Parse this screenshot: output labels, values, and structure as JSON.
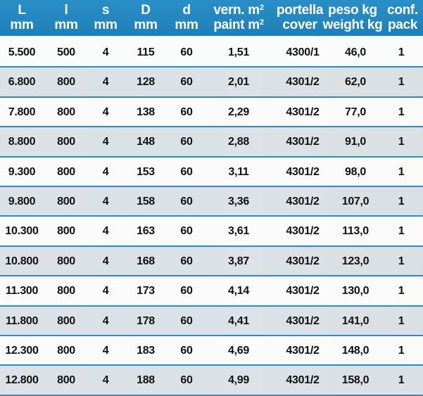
{
  "header": {
    "col_L": [
      "L",
      "mm"
    ],
    "col_l": [
      "l",
      "mm"
    ],
    "col_s": [
      "s",
      "mm"
    ],
    "col_D": [
      "D",
      "mm"
    ],
    "col_d": [
      "d",
      "mm"
    ],
    "col_vern": [
      "vern. m",
      "paint m"
    ],
    "col_portella": [
      "portella",
      "cover"
    ],
    "col_peso": [
      "peso kg",
      "weight kg"
    ],
    "col_conf": [
      "conf.",
      "pack"
    ],
    "sup_2": "2"
  },
  "rows": [
    [
      "5.500",
      "500",
      "4",
      "115",
      "60",
      "1,51",
      "4300/1",
      "46,0",
      "1"
    ],
    [
      "6.800",
      "800",
      "4",
      "128",
      "60",
      "2,01",
      "4301/2",
      "62,0",
      "1"
    ],
    [
      "7.800",
      "800",
      "4",
      "138",
      "60",
      "2,29",
      "4301/2",
      "77,0",
      "1"
    ],
    [
      "8.800",
      "800",
      "4",
      "148",
      "60",
      "2,88",
      "4301/2",
      "91,0",
      "1"
    ],
    [
      "9.300",
      "800",
      "4",
      "153",
      "60",
      "3,11",
      "4301/2",
      "98,0",
      "1"
    ],
    [
      "9.800",
      "800",
      "4",
      "158",
      "60",
      "3,36",
      "4301/2",
      "107,0",
      "1"
    ],
    [
      "10.300",
      "800",
      "4",
      "163",
      "60",
      "3,61",
      "4301/2",
      "113,0",
      "1"
    ],
    [
      "10.800",
      "800",
      "4",
      "168",
      "60",
      "3,87",
      "4301/2",
      "123,0",
      "1"
    ],
    [
      "11.300",
      "800",
      "4",
      "173",
      "60",
      "4,14",
      "4301/2",
      "130,0",
      "1"
    ],
    [
      "11.800",
      "800",
      "4",
      "178",
      "60",
      "4,41",
      "4301/2",
      "141,0",
      "1"
    ],
    [
      "12.300",
      "800",
      "4",
      "183",
      "60",
      "4,69",
      "4301/2",
      "148,0",
      "1"
    ],
    [
      "12.800",
      "800",
      "4",
      "188",
      "60",
      "4,99",
      "4301/2",
      "158,0",
      "1"
    ]
  ],
  "colors": {
    "header_bg": "#2a8fc7",
    "row_border": "#2d8bc3",
    "row_alt_bg": "#d7dee4",
    "row_bg": "#fcfcfc"
  }
}
